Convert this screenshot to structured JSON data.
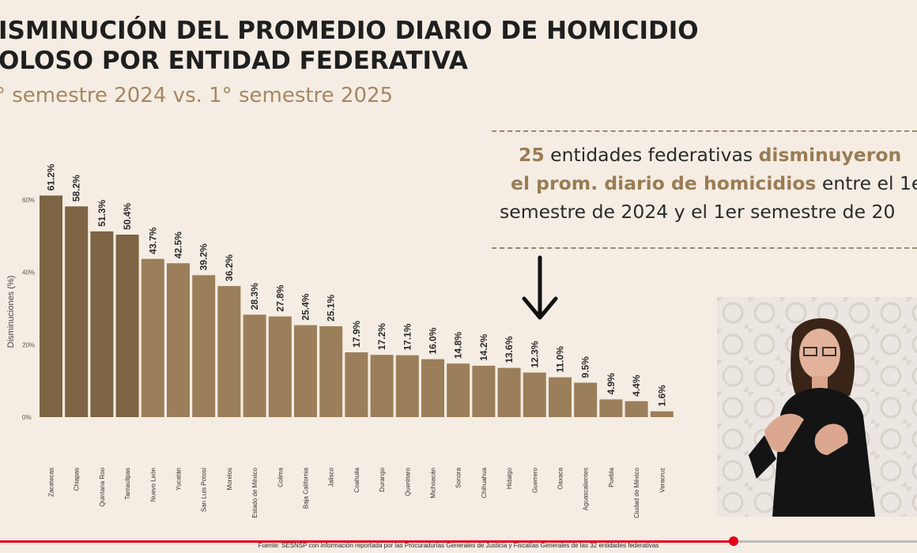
{
  "header": {
    "title_line1": "ISMINUCIÓN DEL PROMEDIO DIARIO DE HOMICIDIO",
    "title_line2": "OLOSO POR ENTIDAD FEDERATIVA",
    "subtitle": "° semestre 2024 vs. 1° semestre 2025"
  },
  "callout": {
    "count": "25",
    "t1": " entidades federativas ",
    "h1": "disminuyeron",
    "h2": "el prom. diario de homicidios",
    "t2": " entre el 1e",
    "t3": "semestre de 2024 y el 1er semestre de 20"
  },
  "footer": {
    "source": "Fuente: SESNSP con información reportada por las Procuradurías Generales de Justicia y Fiscalías Generales de las 32 entidades federativas"
  },
  "video": {
    "progress": 0.8
  },
  "chart_data": {
    "type": "bar",
    "ylabel": "Disminuciones (%)",
    "ylim": [
      0,
      66
    ],
    "yticks": [
      0,
      20,
      40,
      60
    ],
    "ytick_labels": [
      "0%",
      "20%",
      "40%",
      "60%"
    ],
    "bar_color": "#9b7f5a",
    "bar_color_dark": "#7d6444",
    "categories": [
      "Zacatecas",
      "Chiapas",
      "Quintana Roo",
      "Tamaulipas",
      "Nuevo León",
      "Yucatán",
      "San Luis Potosí",
      "Morelos",
      "Estado de México",
      "Colima",
      "Baja California",
      "Jalisco",
      "Coahuila",
      "Durango",
      "Querétaro",
      "Michoacán",
      "Sonora",
      "Chihuahua",
      "Hidalgo",
      "Guerrero",
      "Oaxaca",
      "Aguascalientes",
      "Puebla",
      "Ciudad de México",
      "Veracruz"
    ],
    "values": [
      61.2,
      58.2,
      51.3,
      50.4,
      43.7,
      42.5,
      39.2,
      36.2,
      28.3,
      27.8,
      25.4,
      25.1,
      17.9,
      17.2,
      17.1,
      16.0,
      14.8,
      14.2,
      13.6,
      12.3,
      11.0,
      9.5,
      4.9,
      4.4,
      1.6
    ],
    "labels": [
      "61.2%",
      "58.2%",
      "51.3%",
      "50.4%",
      "43.7%",
      "42.5%",
      "39.2%",
      "36.2%",
      "28.3%",
      "27.8%",
      "25.4%",
      "25.1%",
      "17.9%",
      "17.2%",
      "17.1%",
      "16.0%",
      "14.8%",
      "14.2%",
      "13.6%",
      "12.3%",
      "11.0%",
      "9.5%",
      "4.9%",
      "4.4%",
      "1.6%"
    ],
    "dark_bars": 4
  }
}
